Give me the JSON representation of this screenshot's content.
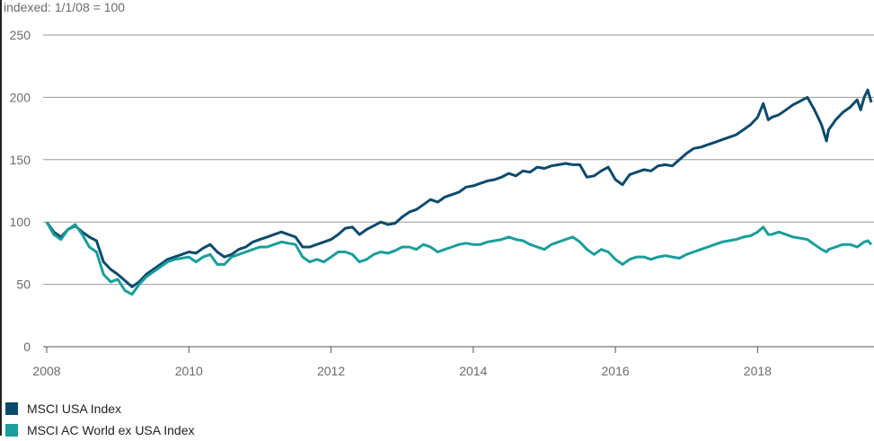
{
  "chart_data": {
    "type": "line",
    "ylabel": "indexed: 1/1/08 = 100",
    "ylim": [
      0,
      250
    ],
    "y_ticks": [
      "0",
      "50",
      "100",
      "150",
      "200",
      "250"
    ],
    "xlim": [
      2008,
      2019.6
    ],
    "x_ticks": [
      "2008",
      "2010",
      "2012",
      "2014",
      "2016",
      "2018"
    ],
    "grid": "horizontal",
    "legend_position": "bottom-left",
    "series": [
      {
        "name": "MSCI USA Index",
        "color": "#0b4a6b",
        "points": [
          [
            2008.0,
            100
          ],
          [
            2008.1,
            92
          ],
          [
            2008.2,
            88
          ],
          [
            2008.3,
            94
          ],
          [
            2008.4,
            97
          ],
          [
            2008.5,
            92
          ],
          [
            2008.6,
            88
          ],
          [
            2008.7,
            85
          ],
          [
            2008.8,
            68
          ],
          [
            2008.9,
            62
          ],
          [
            2009.0,
            58
          ],
          [
            2009.1,
            53
          ],
          [
            2009.2,
            48
          ],
          [
            2009.3,
            52
          ],
          [
            2009.4,
            58
          ],
          [
            2009.5,
            62
          ],
          [
            2009.6,
            66
          ],
          [
            2009.7,
            70
          ],
          [
            2009.8,
            72
          ],
          [
            2009.9,
            74
          ],
          [
            2010.0,
            76
          ],
          [
            2010.1,
            75
          ],
          [
            2010.2,
            79
          ],
          [
            2010.3,
            82
          ],
          [
            2010.4,
            76
          ],
          [
            2010.5,
            72
          ],
          [
            2010.6,
            74
          ],
          [
            2010.7,
            78
          ],
          [
            2010.8,
            80
          ],
          [
            2010.9,
            84
          ],
          [
            2011.0,
            86
          ],
          [
            2011.1,
            88
          ],
          [
            2011.2,
            90
          ],
          [
            2011.3,
            92
          ],
          [
            2011.4,
            90
          ],
          [
            2011.5,
            88
          ],
          [
            2011.6,
            80
          ],
          [
            2011.7,
            80
          ],
          [
            2011.8,
            82
          ],
          [
            2011.9,
            84
          ],
          [
            2012.0,
            86
          ],
          [
            2012.1,
            90
          ],
          [
            2012.2,
            95
          ],
          [
            2012.3,
            96
          ],
          [
            2012.4,
            90
          ],
          [
            2012.5,
            94
          ],
          [
            2012.6,
            97
          ],
          [
            2012.7,
            100
          ],
          [
            2012.8,
            98
          ],
          [
            2012.9,
            99
          ],
          [
            2013.0,
            104
          ],
          [
            2013.1,
            108
          ],
          [
            2013.2,
            110
          ],
          [
            2013.3,
            114
          ],
          [
            2013.4,
            118
          ],
          [
            2013.5,
            116
          ],
          [
            2013.6,
            120
          ],
          [
            2013.7,
            122
          ],
          [
            2013.8,
            124
          ],
          [
            2013.9,
            128
          ],
          [
            2014.0,
            129
          ],
          [
            2014.1,
            131
          ],
          [
            2014.2,
            133
          ],
          [
            2014.3,
            134
          ],
          [
            2014.4,
            136
          ],
          [
            2014.5,
            139
          ],
          [
            2014.6,
            137
          ],
          [
            2014.7,
            141
          ],
          [
            2014.8,
            140
          ],
          [
            2014.9,
            144
          ],
          [
            2015.0,
            143
          ],
          [
            2015.1,
            145
          ],
          [
            2015.2,
            146
          ],
          [
            2015.3,
            147
          ],
          [
            2015.4,
            146
          ],
          [
            2015.5,
            146
          ],
          [
            2015.6,
            136
          ],
          [
            2015.7,
            137
          ],
          [
            2015.8,
            141
          ],
          [
            2015.9,
            144
          ],
          [
            2016.0,
            134
          ],
          [
            2016.1,
            130
          ],
          [
            2016.2,
            138
          ],
          [
            2016.3,
            140
          ],
          [
            2016.4,
            142
          ],
          [
            2016.5,
            141
          ],
          [
            2016.6,
            145
          ],
          [
            2016.7,
            146
          ],
          [
            2016.8,
            145
          ],
          [
            2016.9,
            150
          ],
          [
            2017.0,
            155
          ],
          [
            2017.1,
            159
          ],
          [
            2017.2,
            160
          ],
          [
            2017.3,
            162
          ],
          [
            2017.4,
            164
          ],
          [
            2017.5,
            166
          ],
          [
            2017.6,
            168
          ],
          [
            2017.7,
            170
          ],
          [
            2017.8,
            174
          ],
          [
            2017.9,
            178
          ],
          [
            2018.0,
            184
          ],
          [
            2018.08,
            195
          ],
          [
            2018.15,
            182
          ],
          [
            2018.2,
            184
          ],
          [
            2018.3,
            186
          ],
          [
            2018.4,
            190
          ],
          [
            2018.5,
            194
          ],
          [
            2018.6,
            197
          ],
          [
            2018.7,
            200
          ],
          [
            2018.8,
            190
          ],
          [
            2018.9,
            178
          ],
          [
            2018.97,
            165
          ],
          [
            2019.0,
            174
          ],
          [
            2019.1,
            182
          ],
          [
            2019.2,
            188
          ],
          [
            2019.3,
            192
          ],
          [
            2019.4,
            198
          ],
          [
            2019.45,
            190
          ],
          [
            2019.5,
            200
          ],
          [
            2019.55,
            206
          ],
          [
            2019.6,
            196
          ]
        ]
      },
      {
        "name": "MSCI AC World ex USA Index",
        "color": "#1a9e9b",
        "points": [
          [
            2008.0,
            100
          ],
          [
            2008.1,
            90
          ],
          [
            2008.2,
            86
          ],
          [
            2008.3,
            94
          ],
          [
            2008.4,
            98
          ],
          [
            2008.5,
            90
          ],
          [
            2008.6,
            80
          ],
          [
            2008.7,
            76
          ],
          [
            2008.8,
            58
          ],
          [
            2008.9,
            52
          ],
          [
            2009.0,
            54
          ],
          [
            2009.1,
            45
          ],
          [
            2009.2,
            42
          ],
          [
            2009.3,
            50
          ],
          [
            2009.4,
            56
          ],
          [
            2009.5,
            60
          ],
          [
            2009.6,
            64
          ],
          [
            2009.7,
            68
          ],
          [
            2009.8,
            70
          ],
          [
            2009.9,
            71
          ],
          [
            2010.0,
            72
          ],
          [
            2010.1,
            68
          ],
          [
            2010.2,
            72
          ],
          [
            2010.3,
            74
          ],
          [
            2010.4,
            66
          ],
          [
            2010.5,
            66
          ],
          [
            2010.6,
            72
          ],
          [
            2010.7,
            74
          ],
          [
            2010.8,
            76
          ],
          [
            2010.9,
            78
          ],
          [
            2011.0,
            80
          ],
          [
            2011.1,
            80
          ],
          [
            2011.2,
            82
          ],
          [
            2011.3,
            84
          ],
          [
            2011.4,
            83
          ],
          [
            2011.5,
            82
          ],
          [
            2011.6,
            72
          ],
          [
            2011.7,
            68
          ],
          [
            2011.8,
            70
          ],
          [
            2011.9,
            68
          ],
          [
            2012.0,
            72
          ],
          [
            2012.1,
            76
          ],
          [
            2012.2,
            76
          ],
          [
            2012.3,
            74
          ],
          [
            2012.4,
            68
          ],
          [
            2012.5,
            70
          ],
          [
            2012.6,
            74
          ],
          [
            2012.7,
            76
          ],
          [
            2012.8,
            75
          ],
          [
            2012.9,
            77
          ],
          [
            2013.0,
            80
          ],
          [
            2013.1,
            80
          ],
          [
            2013.2,
            78
          ],
          [
            2013.3,
            82
          ],
          [
            2013.4,
            80
          ],
          [
            2013.5,
            76
          ],
          [
            2013.6,
            78
          ],
          [
            2013.7,
            80
          ],
          [
            2013.8,
            82
          ],
          [
            2013.9,
            83
          ],
          [
            2014.0,
            82
          ],
          [
            2014.1,
            82
          ],
          [
            2014.2,
            84
          ],
          [
            2014.3,
            85
          ],
          [
            2014.4,
            86
          ],
          [
            2014.5,
            88
          ],
          [
            2014.6,
            86
          ],
          [
            2014.7,
            85
          ],
          [
            2014.8,
            82
          ],
          [
            2014.9,
            80
          ],
          [
            2015.0,
            78
          ],
          [
            2015.1,
            82
          ],
          [
            2015.2,
            84
          ],
          [
            2015.3,
            86
          ],
          [
            2015.4,
            88
          ],
          [
            2015.5,
            84
          ],
          [
            2015.6,
            78
          ],
          [
            2015.7,
            74
          ],
          [
            2015.8,
            78
          ],
          [
            2015.9,
            76
          ],
          [
            2016.0,
            70
          ],
          [
            2016.1,
            66
          ],
          [
            2016.2,
            70
          ],
          [
            2016.3,
            72
          ],
          [
            2016.4,
            72
          ],
          [
            2016.5,
            70
          ],
          [
            2016.6,
            72
          ],
          [
            2016.7,
            73
          ],
          [
            2016.8,
            72
          ],
          [
            2016.9,
            71
          ],
          [
            2017.0,
            74
          ],
          [
            2017.1,
            76
          ],
          [
            2017.2,
            78
          ],
          [
            2017.3,
            80
          ],
          [
            2017.4,
            82
          ],
          [
            2017.5,
            84
          ],
          [
            2017.6,
            85
          ],
          [
            2017.7,
            86
          ],
          [
            2017.8,
            88
          ],
          [
            2017.9,
            89
          ],
          [
            2018.0,
            92
          ],
          [
            2018.08,
            96
          ],
          [
            2018.15,
            90
          ],
          [
            2018.2,
            90
          ],
          [
            2018.3,
            92
          ],
          [
            2018.4,
            90
          ],
          [
            2018.5,
            88
          ],
          [
            2018.6,
            87
          ],
          [
            2018.7,
            86
          ],
          [
            2018.8,
            82
          ],
          [
            2018.9,
            78
          ],
          [
            2018.97,
            76
          ],
          [
            2019.0,
            78
          ],
          [
            2019.1,
            80
          ],
          [
            2019.2,
            82
          ],
          [
            2019.3,
            82
          ],
          [
            2019.4,
            80
          ],
          [
            2019.5,
            84
          ],
          [
            2019.55,
            85
          ],
          [
            2019.6,
            82
          ]
        ]
      }
    ]
  }
}
